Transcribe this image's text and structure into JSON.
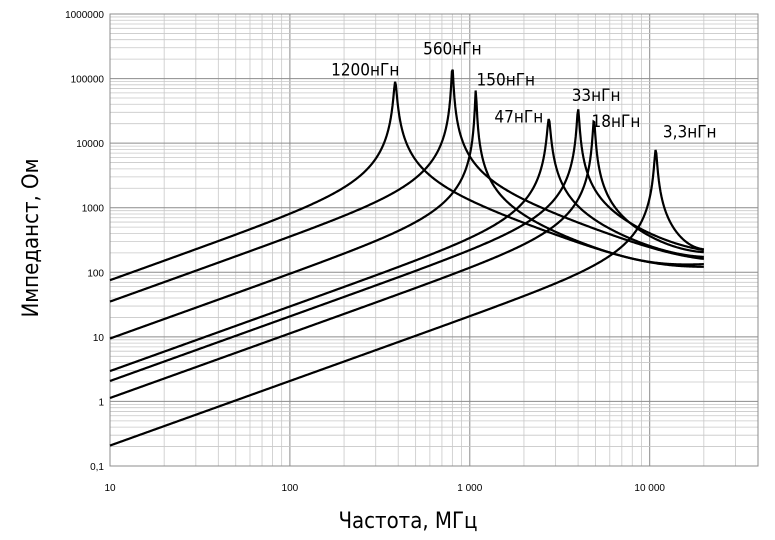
{
  "chart_data": {
    "type": "line",
    "x_scale": "log",
    "y_scale": "log",
    "xlabel": "Частота, МГц",
    "ylabel": "Импеданст, Ом",
    "xlim": [
      10,
      40000
    ],
    "ylim": [
      0.1,
      1000000
    ],
    "grid": true,
    "x_ticks": [
      {
        "value": 10,
        "label": "10"
      },
      {
        "value": 100,
        "label": "100"
      },
      {
        "value": 1000,
        "label": "1 000"
      },
      {
        "value": 10000,
        "label": "10 000"
      }
    ],
    "y_ticks": [
      {
        "value": 0.1,
        "label": "0,1"
      },
      {
        "value": 1,
        "label": "1"
      },
      {
        "value": 10,
        "label": "10"
      },
      {
        "value": 100,
        "label": "100"
      },
      {
        "value": 1000,
        "label": "1000"
      },
      {
        "value": 10000,
        "label": "10000"
      },
      {
        "value": 100000,
        "label": "100000"
      },
      {
        "value": 1000000,
        "label": "1000000"
      }
    ],
    "series": [
      {
        "name": "1200нГн",
        "L_nH": 1200,
        "srf_mhz": 385,
        "peak_ohm": 90000,
        "hf_ohm": 108
      },
      {
        "name": "560нГн",
        "L_nH": 560,
        "srf_mhz": 800,
        "peak_ohm": 155000,
        "hf_ohm": 115
      },
      {
        "name": "150нГн",
        "L_nH": 150,
        "srf_mhz": 1080,
        "peak_ohm": 68000,
        "hf_ohm": 122
      },
      {
        "name": "47нГн",
        "L_nH": 47,
        "srf_mhz": 2750,
        "peak_ohm": 24000,
        "hf_ohm": 130
      },
      {
        "name": "33нГн",
        "L_nH": 33,
        "srf_mhz": 4000,
        "peak_ohm": 34000,
        "hf_ohm": 138
      },
      {
        "name": "18нГн",
        "L_nH": 18,
        "srf_mhz": 4900,
        "peak_ohm": 23500,
        "hf_ohm": 145
      },
      {
        "name": "3,3нГн",
        "L_nH": 3.3,
        "srf_mhz": 10800,
        "peak_ohm": 8000,
        "hf_ohm": 150
      }
    ],
    "x_end_mhz": 20000
  }
}
